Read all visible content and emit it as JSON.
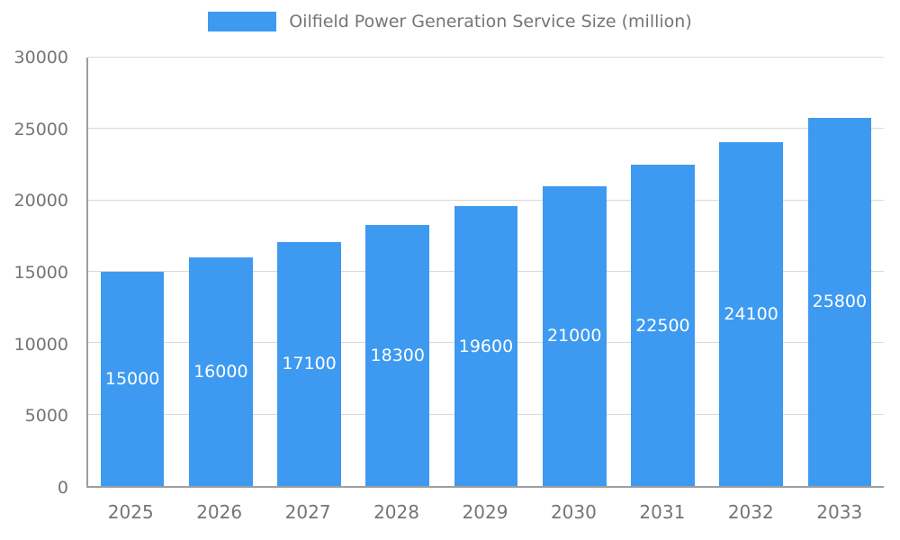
{
  "legend": {
    "label": "Oilfield Power Generation Service Size (million)"
  },
  "chart_data": {
    "type": "bar",
    "title": "Oilfield Power Generation Service Size (million)",
    "categories": [
      "2025",
      "2026",
      "2027",
      "2028",
      "2029",
      "2030",
      "2031",
      "2032",
      "2033"
    ],
    "values": [
      15000,
      16000,
      17100,
      18300,
      19600,
      21000,
      22500,
      24100,
      25800
    ],
    "xlabel": "",
    "ylabel": "",
    "ylim": [
      0,
      30000
    ],
    "ytick_step": 5000,
    "yticks": [
      0,
      5000,
      10000,
      15000,
      20000,
      25000,
      30000
    ],
    "grid": true,
    "legend_position": "top",
    "bar_color": "#3d9af0",
    "bar_value_label_color": "#ffffff",
    "axis_text_color": "#757575",
    "gridline_color": "#d9d9d9",
    "axis_line_color": "#9e9e9e",
    "background_color": "#ffffff"
  }
}
